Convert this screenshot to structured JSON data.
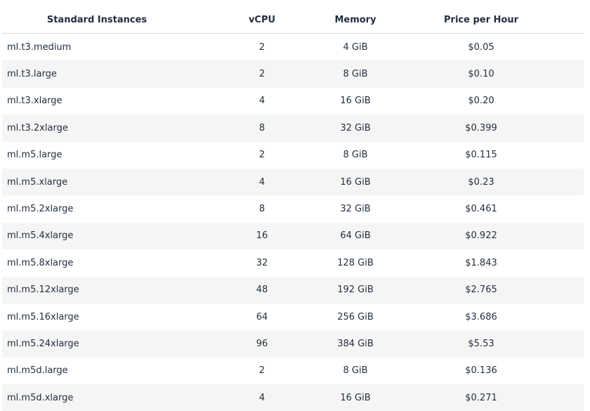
{
  "table": {
    "headers": [
      "Standard Instances",
      "vCPU",
      "Memory",
      "Price per Hour"
    ],
    "rows": [
      [
        "ml.t3.medium",
        "2",
        "4 GiB",
        "$0.05"
      ],
      [
        "ml.t3.large",
        "2",
        "8 GiB",
        "$0.10"
      ],
      [
        "ml.t3.xlarge",
        "4",
        "16 GiB",
        "$0.20"
      ],
      [
        "ml.t3.2xlarge",
        "8",
        "32 GiB",
        "$0.399"
      ],
      [
        "ml.m5.large",
        "2",
        "8 GiB",
        "$0.115"
      ],
      [
        "ml.m5.xlarge",
        "4",
        "16 GiB",
        "$0.23"
      ],
      [
        "ml.m5.2xlarge",
        "8",
        "32 GiB",
        "$0.461"
      ],
      [
        "ml.m5.4xlarge",
        "16",
        "64 GiB",
        "$0.922"
      ],
      [
        "ml.m5.8xlarge",
        "32",
        "128 GiB",
        "$1.843"
      ],
      [
        "ml.m5.12xlarge",
        "48",
        "192 GiB",
        "$2.765"
      ],
      [
        "ml.m5.16xlarge",
        "64",
        "256 GiB",
        "$3.686"
      ],
      [
        "ml.m5.24xlarge",
        "96",
        "384 GiB",
        "$5.53"
      ],
      [
        "ml.m5d.large",
        "2",
        "8 GiB",
        "$0.136"
      ],
      [
        "ml.m5d.xlarge",
        "4",
        "16 GiB",
        "$0.271"
      ]
    ]
  }
}
